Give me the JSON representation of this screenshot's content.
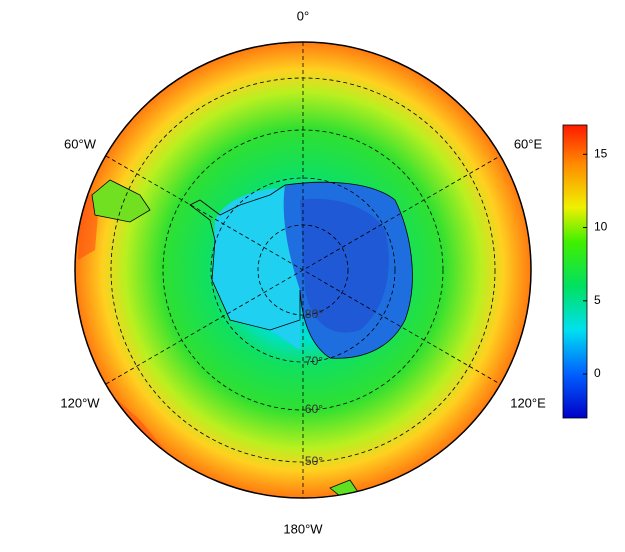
{
  "map": {
    "longitude_labels": [
      "0°",
      "60°E",
      "120°E",
      "180°W",
      "120°W",
      "60°W"
    ],
    "latitude_labels": [
      "80°",
      "70°",
      "60°",
      "50°"
    ],
    "colorbar": {
      "lim": [
        -3,
        17
      ],
      "ticks": [
        0,
        5,
        10,
        15
      ]
    }
  }
}
